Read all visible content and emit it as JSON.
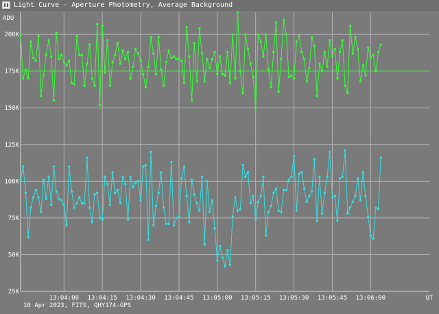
{
  "window": {
    "title": "Light Curve - Aperture Photometry, Average Background",
    "icon": "app-icon"
  },
  "footer": {
    "info": "10 Apr 2023, FITS, QHY174-GPS"
  },
  "chart_data": {
    "type": "line",
    "ylabel": "ADU",
    "xlabel": "UT",
    "ylim": [
      25000,
      215000
    ],
    "xlim": [
      "13:03:43",
      "13:06:23"
    ],
    "y_ticks": [
      25000,
      50000,
      75000,
      100000,
      125000,
      150000,
      175000,
      200000
    ],
    "y_tick_labels": [
      "25K",
      "50K",
      "75K",
      "100K",
      "125K",
      "150K",
      "175K",
      "200K"
    ],
    "x_ticks": [
      "13:04:00",
      "13:04:15",
      "13:04:30",
      "13:04:45",
      "13:05:00",
      "13:05:15",
      "13:05:30",
      "13:05:45",
      "13:06:00"
    ],
    "grid": true,
    "reference_line": 175000,
    "x_start": "13:03:43",
    "x_step_seconds": 1,
    "series": [
      {
        "color": "#33ff33",
        "values": [
          200000,
          170000,
          176000,
          170000,
          195000,
          184000,
          182000,
          199000,
          158000,
          172000,
          186000,
          196000,
          185000,
          155000,
          201000,
          183000,
          186000,
          181000,
          179000,
          182000,
          167000,
          166000,
          199000,
          186000,
          186000,
          165000,
          180000,
          193000,
          170000,
          165000,
          207000,
          152000,
          206000,
          174000,
          196000,
          165000,
          181000,
          186000,
          194000,
          180000,
          189000,
          183000,
          188000,
          170000,
          178000,
          190000,
          187000,
          182000,
          173000,
          164000,
          178000,
          198000,
          187000,
          173000,
          198000,
          176000,
          165000,
          181000,
          189000,
          184000,
          185000,
          183000,
          184000,
          182000,
          167000,
          205000,
          185000,
          155000,
          194000,
          168000,
          204000,
          187000,
          168000,
          183000,
          177000,
          183000,
          188000,
          173000,
          185000,
          173000,
          172000,
          188000,
          167000,
          200000,
          170000,
          215000,
          175000,
          160000,
          200000,
          190000,
          180000,
          171000,
          150000,
          200000,
          195000,
          185000,
          200000,
          176000,
          164000,
          188000,
          208000,
          161000,
          183000,
          210000,
          200000,
          171000,
          172000,
          170000,
          195000,
          199000,
          188000,
          183000,
          168000,
          177000,
          198000,
          192000,
          158000,
          180000,
          175000,
          188000,
          178000,
          196000,
          185000,
          190000,
          170000,
          188000,
          196000,
          165000,
          160000,
          206000,
          187000,
          198000,
          190000,
          168000,
          179000,
          172000,
          191000,
          184000,
          186000,
          175000,
          188000,
          193000
        ]
      },
      {
        "color": "#33e0e0",
        "values": [
          101000,
          110000,
          92000,
          62000,
          82000,
          89000,
          94000,
          89000,
          79000,
          101000,
          88000,
          103000,
          84000,
          110000,
          93000,
          88000,
          87000,
          84000,
          70000,
          110000,
          93000,
          82000,
          85000,
          89000,
          85000,
          85000,
          116000,
          82000,
          72000,
          91000,
          92000,
          75000,
          74000,
          103000,
          98000,
          84000,
          106000,
          92000,
          94000,
          85000,
          103000,
          98000,
          74000,
          103000,
          96000,
          99000,
          100000,
          87000,
          110000,
          111000,
          60000,
          120000,
          70000,
          83000,
          92000,
          106000,
          82000,
          71000,
          71000,
          113000,
          70000,
          75000,
          76000,
          102000,
          110000,
          90000,
          72000,
          101000,
          91000,
          85000,
          80000,
          103000,
          57000,
          100000,
          79000,
          87000,
          68000,
          46000,
          56000,
          48000,
          42000,
          53000,
          43000,
          76000,
          89000,
          80000,
          81000,
          111000,
          103000,
          106000,
          85000,
          90000,
          74000,
          86000,
          90000,
          103000,
          63000,
          79000,
          83000,
          92000,
          95000,
          80000,
          79000,
          94000,
          94000,
          101000,
          103000,
          117000,
          80000,
          105000,
          106000,
          95000,
          86000,
          90000,
          93000,
          115000,
          73000,
          103000,
          78000,
          92000,
          103000,
          120000,
          89000,
          90000,
          73000,
          102000,
          103000,
          121000,
          78000,
          82000,
          86000,
          90000,
          102000,
          87000,
          106000,
          90000,
          76000,
          63000,
          61000,
          82000,
          81000,
          116000
        ]
      }
    ]
  }
}
